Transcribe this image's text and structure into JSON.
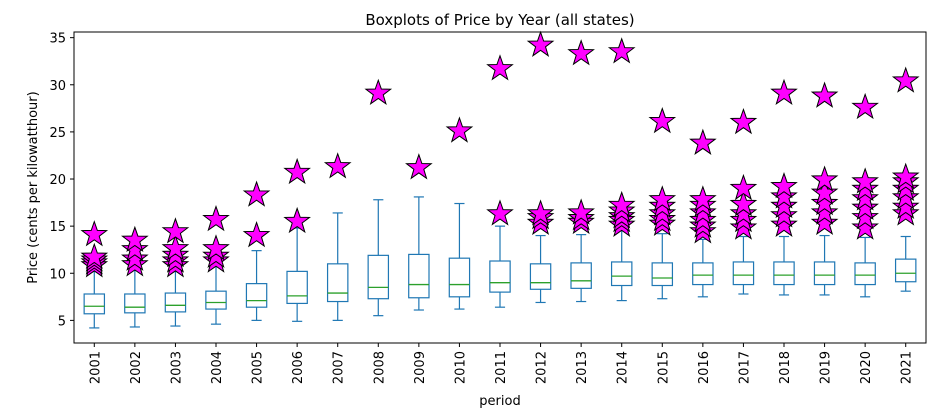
{
  "chart_data": {
    "type": "box",
    "title": "Boxplots of Price by Year (all states)",
    "xlabel": "period",
    "ylabel": "Price (cents per kilowatthour)",
    "ylim": [
      2.6,
      35.6
    ],
    "yticks": [
      5,
      10,
      15,
      20,
      25,
      30,
      35
    ],
    "grid": false,
    "colors": {
      "box": "#1f77b4",
      "median": "#2ca02c",
      "flier_fill": "#ff00ff",
      "flier_edge": "#000000"
    },
    "flier_marker": "star",
    "categories": [
      "2001",
      "2002",
      "2003",
      "2004",
      "2005",
      "2006",
      "2007",
      "2008",
      "2009",
      "2010",
      "2011",
      "2012",
      "2013",
      "2014",
      "2015",
      "2016",
      "2017",
      "2018",
      "2019",
      "2020",
      "2021"
    ],
    "boxes": [
      {
        "whislo": 4.2,
        "q1": 5.7,
        "med": 6.5,
        "q3": 7.8,
        "whishi": 10.4,
        "fliers": [
          10.8,
          11.1,
          11.4,
          11.7,
          14.1
        ]
      },
      {
        "whislo": 4.3,
        "q1": 5.8,
        "med": 6.4,
        "q3": 7.8,
        "whishi": 10.5,
        "fliers": [
          10.9,
          11.5,
          12.5,
          13.5
        ]
      },
      {
        "whislo": 4.4,
        "q1": 5.9,
        "med": 6.6,
        "q3": 7.9,
        "whishi": 10.3,
        "fliers": [
          10.8,
          11.3,
          11.9,
          12.6,
          14.4
        ]
      },
      {
        "whislo": 4.6,
        "q1": 6.2,
        "med": 6.9,
        "q3": 8.1,
        "whishi": 10.7,
        "fliers": [
          11.3,
          11.8,
          12.6,
          15.7
        ]
      },
      {
        "whislo": 5.0,
        "q1": 6.4,
        "med": 7.1,
        "q3": 8.9,
        "whishi": 12.4,
        "fliers": [
          14.0,
          18.3
        ]
      },
      {
        "whislo": 4.9,
        "q1": 6.8,
        "med": 7.6,
        "q3": 10.2,
        "whishi": 14.8,
        "fliers": [
          15.5,
          20.7
        ]
      },
      {
        "whislo": 5.0,
        "q1": 7.0,
        "med": 7.9,
        "q3": 11.0,
        "whishi": 16.4,
        "fliers": [
          21.3
        ]
      },
      {
        "whislo": 5.5,
        "q1": 7.3,
        "med": 8.5,
        "q3": 11.9,
        "whishi": 17.8,
        "fliers": [
          29.1
        ]
      },
      {
        "whislo": 6.1,
        "q1": 7.4,
        "med": 8.8,
        "q3": 12.0,
        "whishi": 18.1,
        "fliers": [
          21.2
        ]
      },
      {
        "whislo": 6.2,
        "q1": 7.5,
        "med": 8.8,
        "q3": 11.6,
        "whishi": 17.4,
        "fliers": [
          25.1
        ]
      },
      {
        "whislo": 6.4,
        "q1": 8.0,
        "med": 9.0,
        "q3": 11.3,
        "whishi": 15.0,
        "fliers": [
          16.3,
          31.7
        ]
      },
      {
        "whislo": 6.9,
        "q1": 8.3,
        "med": 9.0,
        "q3": 11.0,
        "whishi": 14.0,
        "fliers": [
          15.3,
          15.9,
          16.3,
          34.2
        ]
      },
      {
        "whislo": 7.0,
        "q1": 8.4,
        "med": 9.2,
        "q3": 11.1,
        "whishi": 14.1,
        "fliers": [
          15.4,
          15.8,
          16.4,
          33.3
        ]
      },
      {
        "whislo": 7.1,
        "q1": 8.7,
        "med": 9.7,
        "q3": 11.2,
        "whishi": 14.5,
        "fliers": [
          15.1,
          15.6,
          16.0,
          16.6,
          17.2,
          33.5
        ]
      },
      {
        "whislo": 7.3,
        "q1": 8.7,
        "med": 9.5,
        "q3": 11.1,
        "whishi": 14.2,
        "fliers": [
          15.2,
          15.7,
          16.3,
          17.1,
          17.8,
          26.1
        ]
      },
      {
        "whislo": 7.5,
        "q1": 8.8,
        "med": 9.8,
        "q3": 11.1,
        "whishi": 13.6,
        "fliers": [
          14.4,
          15.0,
          15.6,
          16.4,
          17.2,
          17.8,
          23.8
        ]
      },
      {
        "whislo": 7.8,
        "q1": 8.8,
        "med": 9.8,
        "q3": 11.2,
        "whishi": 13.9,
        "fliers": [
          14.8,
          15.6,
          16.3,
          17.3,
          19.0,
          26.0
        ]
      },
      {
        "whislo": 7.7,
        "q1": 8.8,
        "med": 9.8,
        "q3": 11.2,
        "whishi": 13.9,
        "fliers": [
          15.1,
          16.1,
          17.1,
          18.1,
          19.2,
          29.1
        ]
      },
      {
        "whislo": 7.7,
        "q1": 8.8,
        "med": 9.8,
        "q3": 11.2,
        "whishi": 14.0,
        "fliers": [
          15.3,
          16.4,
          17.4,
          18.5,
          19.9,
          28.8
        ]
      },
      {
        "whislo": 7.5,
        "q1": 8.8,
        "med": 9.8,
        "q3": 11.1,
        "whishi": 13.8,
        "fliers": [
          14.8,
          15.9,
          16.9,
          17.9,
          18.9,
          19.7,
          27.6
        ]
      },
      {
        "whislo": 8.1,
        "q1": 9.1,
        "med": 10.0,
        "q3": 11.5,
        "whishi": 13.9,
        "fliers": [
          16.3,
          17.0,
          18.0,
          18.9,
          19.7,
          20.2,
          30.4
        ]
      }
    ]
  }
}
